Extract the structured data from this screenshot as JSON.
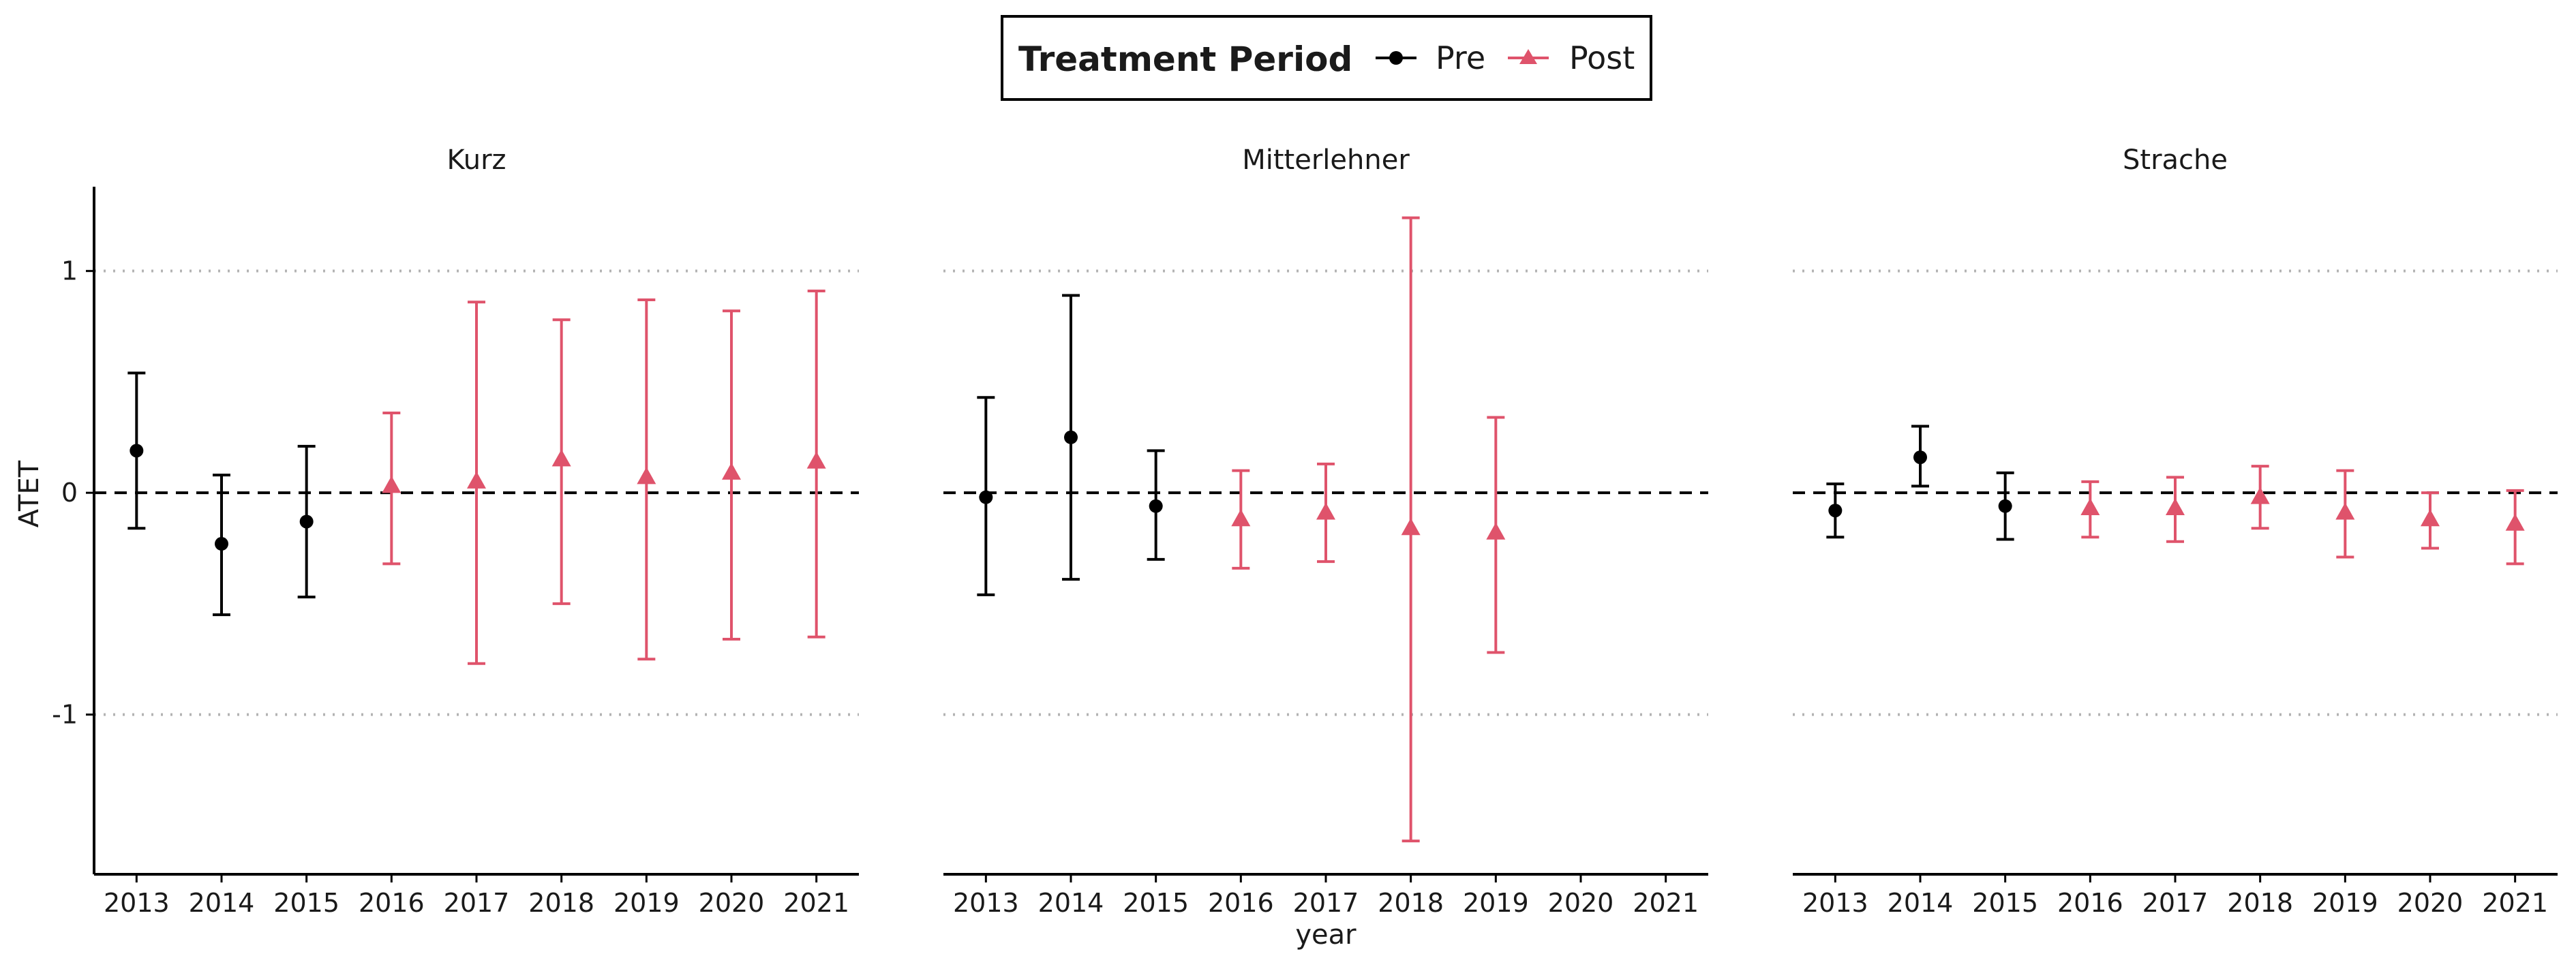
{
  "chart_data": {
    "type": "scatter",
    "subtype": "point-range with error bars, faceted",
    "legend": {
      "title": "Treatment Period",
      "position": "top-center",
      "entries": [
        {
          "label": "Pre",
          "color": "#000000",
          "shape": "circle"
        },
        {
          "label": "Post",
          "color": "#DF536B",
          "shape": "triangle"
        }
      ]
    },
    "xlabel": "year",
    "ylabel": "ATET",
    "x_ticks": [
      "2013",
      "2014",
      "2015",
      "2016",
      "2017",
      "2018",
      "2019",
      "2020",
      "2021"
    ],
    "y_ticks": [
      {
        "value": -1,
        "label": "-1"
      },
      {
        "value": 0,
        "label": "0"
      },
      {
        "value": 1,
        "label": "1"
      }
    ],
    "ylim": [
      -1.72,
      1.38
    ],
    "reference_lines": [
      {
        "y": 0,
        "style": "dashed"
      },
      {
        "y": 1,
        "style": "dotted"
      },
      {
        "y": -1,
        "style": "dotted"
      }
    ],
    "colors": {
      "pre": "#000000",
      "post": "#DF536B",
      "dotted": "#b3b3b3"
    },
    "facets": [
      {
        "title": "Kurz",
        "points": [
          {
            "x": "2013",
            "y": 0.19,
            "low": -0.16,
            "high": 0.54,
            "period": "Pre"
          },
          {
            "x": "2014",
            "y": -0.23,
            "low": -0.55,
            "high": 0.08,
            "period": "Pre"
          },
          {
            "x": "2015",
            "y": -0.13,
            "low": -0.47,
            "high": 0.21,
            "period": "Pre"
          },
          {
            "x": "2016",
            "y": 0.03,
            "low": -0.32,
            "high": 0.36,
            "period": "Post"
          },
          {
            "x": "2017",
            "y": 0.05,
            "low": -0.77,
            "high": 0.86,
            "period": "Post"
          },
          {
            "x": "2018",
            "y": 0.15,
            "low": -0.5,
            "high": 0.78,
            "period": "Post"
          },
          {
            "x": "2019",
            "y": 0.07,
            "low": -0.75,
            "high": 0.87,
            "period": "Post"
          },
          {
            "x": "2020",
            "y": 0.09,
            "low": -0.66,
            "high": 0.82,
            "period": "Post"
          },
          {
            "x": "2021",
            "y": 0.14,
            "low": -0.65,
            "high": 0.91,
            "period": "Post"
          }
        ]
      },
      {
        "title": "Mitterlehner",
        "points": [
          {
            "x": "2013",
            "y": -0.02,
            "low": -0.46,
            "high": 0.43,
            "period": "Pre"
          },
          {
            "x": "2014",
            "y": 0.25,
            "low": -0.39,
            "high": 0.89,
            "period": "Pre"
          },
          {
            "x": "2015",
            "y": -0.06,
            "low": -0.3,
            "high": 0.19,
            "period": "Pre"
          },
          {
            "x": "2016",
            "y": -0.12,
            "low": -0.34,
            "high": 0.1,
            "period": "Post"
          },
          {
            "x": "2017",
            "y": -0.09,
            "low": -0.31,
            "high": 0.13,
            "period": "Post"
          },
          {
            "x": "2018",
            "y": -0.16,
            "low": -1.57,
            "high": 1.24,
            "period": "Post"
          },
          {
            "x": "2019",
            "y": -0.18,
            "low": -0.72,
            "high": 0.34,
            "period": "Post"
          }
        ]
      },
      {
        "title": "Strache",
        "points": [
          {
            "x": "2013",
            "y": -0.08,
            "low": -0.2,
            "high": 0.04,
            "period": "Pre"
          },
          {
            "x": "2014",
            "y": 0.16,
            "low": 0.03,
            "high": 0.3,
            "period": "Pre"
          },
          {
            "x": "2015",
            "y": -0.06,
            "low": -0.21,
            "high": 0.09,
            "period": "Pre"
          },
          {
            "x": "2016",
            "y": -0.07,
            "low": -0.2,
            "high": 0.05,
            "period": "Post"
          },
          {
            "x": "2017",
            "y": -0.07,
            "low": -0.22,
            "high": 0.07,
            "period": "Post"
          },
          {
            "x": "2018",
            "y": -0.02,
            "low": -0.16,
            "high": 0.12,
            "period": "Post"
          },
          {
            "x": "2019",
            "y": -0.09,
            "low": -0.29,
            "high": 0.1,
            "period": "Post"
          },
          {
            "x": "2020",
            "y": -0.12,
            "low": -0.25,
            "high": 0.0,
            "period": "Post"
          },
          {
            "x": "2021",
            "y": -0.14,
            "low": -0.32,
            "high": 0.01,
            "period": "Post"
          }
        ]
      }
    ]
  }
}
